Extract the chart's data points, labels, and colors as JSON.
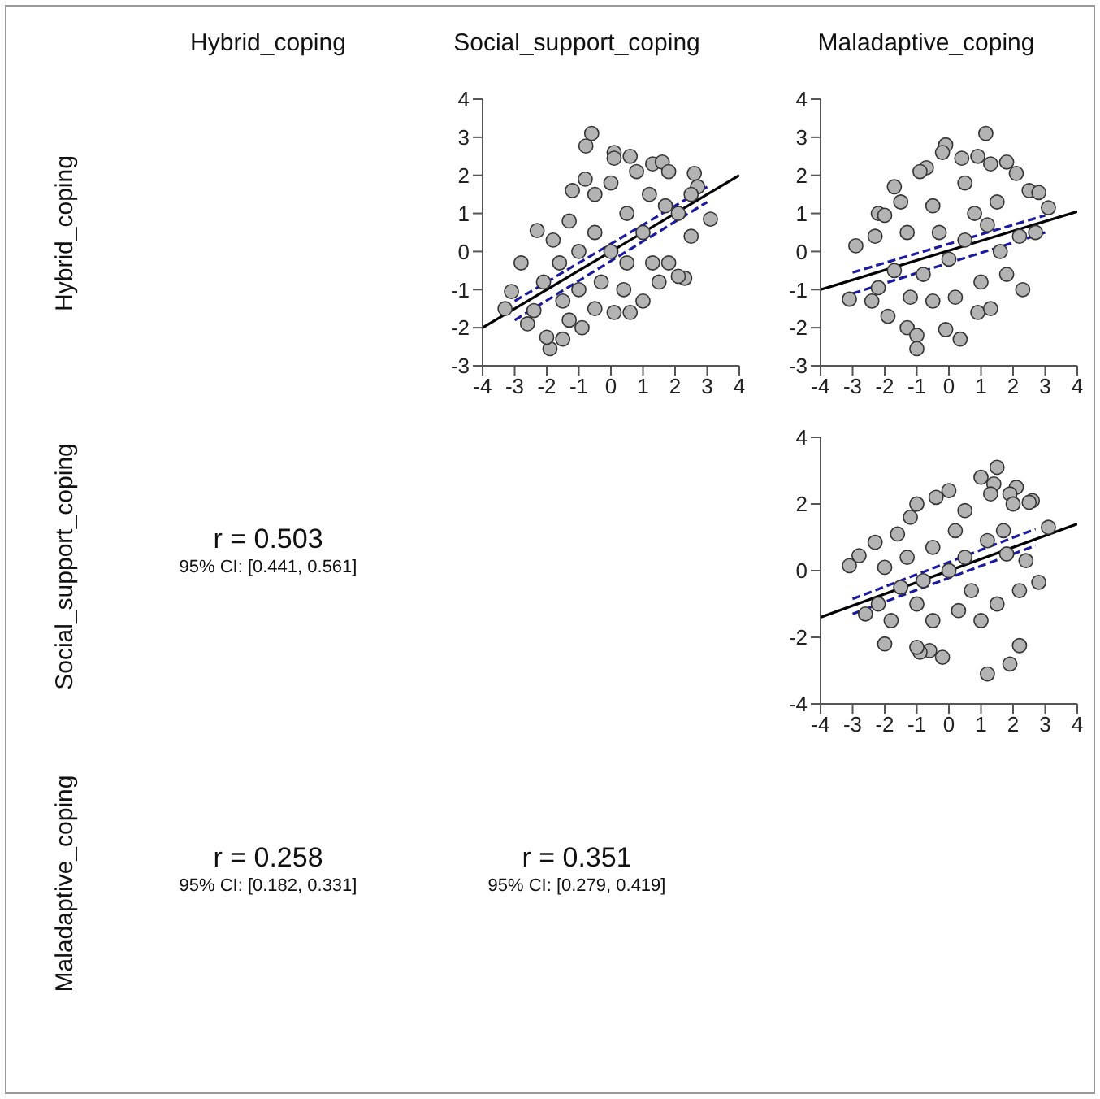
{
  "chart_data": [
    {
      "type": "other",
      "annotations": [
        "Hybrid_coping",
        "Social_support_coping",
        "Maladaptive_coping",
        "Hybrid_coping",
        "Social_support_coping",
        "Maladaptive_coping"
      ]
    },
    {
      "type": "scatter",
      "xlim": [
        -4,
        4
      ],
      "xticks": [
        -4,
        -3,
        -2,
        -1,
        0,
        1,
        2,
        3,
        4
      ],
      "ylim": [
        -3,
        4
      ],
      "yticks": [
        -3,
        -2,
        -1,
        0,
        1,
        2,
        3,
        4
      ],
      "grid": false,
      "legend": false,
      "series": [
        {
          "color": "#b3b3b3",
          "marker": "circle",
          "x": [
            -0.6,
            -0.78,
            0.1,
            0.1,
            0.6,
            1.3,
            1.6,
            1.8,
            2.6,
            2.7,
            3.1,
            2.5,
            2.3,
            2.1,
            -2.3,
            -2.8,
            -3.1,
            -3.3,
            -2.4,
            -2.6,
            -1.9,
            -2.0,
            -1.5,
            -0.9,
            -1.5,
            -1.0,
            -0.5,
            0.1,
            0.6,
            1.0,
            1.5,
            1.8,
            -0.8,
            -0.5,
            -1.2,
            0,
            0.8,
            1.2,
            1.7,
            2.1,
            -1.3,
            -1.8,
            -1.6,
            -2.1,
            -1.0,
            -0.5,
            0,
            0.5,
            1,
            0.5,
            -0.3,
            1.3,
            2.5,
            -1.3,
            0.4
          ],
          "values": [
            3.1,
            2.77,
            2.6,
            2.45,
            2.5,
            2.3,
            2.35,
            2.1,
            2.05,
            1.7,
            0.85,
            0.4,
            -0.7,
            -0.65,
            0.55,
            -0.3,
            -1.05,
            -1.5,
            -1.55,
            -1.9,
            -2.55,
            -2.25,
            -2.3,
            -2.0,
            -1.3,
            -1.0,
            -1.5,
            -1.6,
            -1.6,
            -1.3,
            -0.8,
            -0.3,
            1.9,
            1.5,
            1.6,
            1.8,
            2.1,
            1.5,
            1.2,
            1.0,
            0.8,
            0.3,
            -0.3,
            -0.8,
            0,
            0.5,
            0,
            -0.3,
            0.5,
            1.0,
            -0.8,
            -0.3,
            1.5,
            -1.8,
            -1.0
          ]
        },
        {
          "type": "line",
          "color": "#000000",
          "x": [
            -4,
            4
          ],
          "values": [
            -2,
            2
          ]
        },
        {
          "type": "line",
          "color": "#1a1aa0",
          "line_style": "dashed",
          "x": [
            -3,
            3
          ],
          "values": [
            -1.3,
            1.7
          ]
        },
        {
          "type": "line",
          "color": "#1a1aa0",
          "line_style": "dashed",
          "x": [
            -3,
            3
          ],
          "values": [
            -1.8,
            1.3
          ]
        }
      ]
    },
    {
      "type": "scatter",
      "xlim": [
        -4,
        4
      ],
      "xticks": [
        -4,
        -3,
        -2,
        -1,
        0,
        1,
        2,
        3,
        4
      ],
      "ylim": [
        -3,
        4
      ],
      "yticks": [
        -3,
        -2,
        -1,
        0,
        1,
        2,
        3,
        4
      ],
      "grid": false,
      "legend": false,
      "series": [
        {
          "color": "#b3b3b3",
          "marker": "circle",
          "x": [
            1.15,
            -0.1,
            -0.2,
            0.4,
            0.9,
            1.3,
            1.8,
            2.1,
            -0.7,
            -0.9,
            2.5,
            2.8,
            3.1,
            -1.7,
            -2.2,
            -2.0,
            -2.9,
            -3.1,
            -2.4,
            -2.2,
            -1.9,
            -1.3,
            -1.0,
            -1.0,
            -0.1,
            0.35,
            0.9,
            1.3,
            2.3,
            1.8,
            2.2,
            2.7,
            1.5,
            0.5,
            -0.5,
            -1.3,
            -2.3,
            -1.7,
            -0.8,
            0,
            0.5,
            1,
            -0.5,
            0.2,
            1.2,
            -1.2,
            0.8,
            -0.3,
            1.6,
            -1.5
          ],
          "values": [
            3.1,
            2.8,
            2.6,
            2.45,
            2.5,
            2.3,
            2.35,
            2.05,
            2.2,
            2.1,
            1.6,
            1.55,
            1.15,
            1.7,
            1.0,
            0.95,
            0.15,
            -1.25,
            -1.3,
            -0.95,
            -1.7,
            -2.0,
            -2.2,
            -2.55,
            -2.05,
            -2.3,
            -1.6,
            -1.5,
            -1.0,
            -0.6,
            0.4,
            0.5,
            1.3,
            1.8,
            1.2,
            0.5,
            0.4,
            -0.5,
            -0.6,
            -0.2,
            0.3,
            -0.8,
            -1.3,
            -1.2,
            0.7,
            -1.2,
            1.0,
            0.5,
            0.0,
            1.3
          ]
        },
        {
          "type": "line",
          "color": "#000000",
          "x": [
            -4,
            4
          ],
          "values": [
            -1,
            1.05
          ]
        },
        {
          "type": "line",
          "color": "#1a1aa0",
          "line_style": "dashed",
          "x": [
            -3,
            3
          ],
          "values": [
            -0.55,
            0.95
          ]
        },
        {
          "type": "line",
          "color": "#1a1aa0",
          "line_style": "dashed",
          "x": [
            -3,
            3
          ],
          "values": [
            -1.1,
            0.5
          ]
        }
      ]
    },
    {
      "type": "scatter",
      "xlim": [
        -4,
        4
      ],
      "xticks": [
        -4,
        -3,
        -2,
        -1,
        0,
        1,
        2,
        3,
        4
      ],
      "ylim": [
        -4,
        4
      ],
      "yticks": [
        -4,
        -2,
        0,
        2,
        4
      ],
      "grid": false,
      "legend": false,
      "series": [
        {
          "color": "#b3b3b3",
          "marker": "circle",
          "x": [
            1.5,
            1.4,
            1.0,
            1.3,
            2.1,
            1.9,
            2.0,
            2.6,
            2.5,
            3.1,
            2.8,
            2.2,
            2.2,
            1.9,
            1.2,
            -0.2,
            -0.6,
            -0.9,
            -1.0,
            -2.0,
            -3.1,
            -2.8,
            -2.3,
            -2.0,
            -2.6,
            -1.0,
            0,
            -0.4,
            -1.2,
            -1.6,
            0.5,
            1.7,
            -1.5,
            -1.0,
            -0.5,
            0.3,
            1.0,
            1.5,
            1.8,
            0.5,
            0,
            -0.5,
            -1.8,
            -2.2,
            0.7,
            1.2,
            -0.8,
            2.4,
            0.2,
            -1.3
          ],
          "values": [
            3.1,
            2.6,
            2.8,
            2.3,
            2.5,
            2.3,
            2.0,
            2.1,
            2.05,
            1.3,
            -0.35,
            -0.6,
            -2.25,
            -2.8,
            -3.1,
            -2.6,
            -2.4,
            -2.45,
            -2.3,
            -2.2,
            0.15,
            0.45,
            0.85,
            0.1,
            -1.3,
            2.0,
            2.4,
            2.2,
            1.6,
            1.1,
            1.8,
            1.2,
            -0.5,
            -1.0,
            -1.5,
            -1.2,
            -1.5,
            -1.0,
            0.5,
            0.4,
            0,
            0.7,
            -1.5,
            -1.0,
            -0.6,
            0.9,
            -0.3,
            0.3,
            1.2,
            0.4
          ]
        },
        {
          "type": "line",
          "color": "#000000",
          "x": [
            -4,
            4
          ],
          "values": [
            -1.4,
            1.4
          ]
        },
        {
          "type": "line",
          "color": "#1a1aa0",
          "line_style": "dashed",
          "x": [
            -3,
            2.7
          ],
          "values": [
            -0.85,
            1.25
          ]
        },
        {
          "type": "line",
          "color": "#1a1aa0",
          "line_style": "dashed",
          "x": [
            -3,
            2.7
          ],
          "values": [
            -1.3,
            0.75
          ]
        }
      ]
    },
    {
      "type": "other",
      "annotations": [
        "r = 0.503",
        "95% CI: [0.441, 0.561]"
      ]
    },
    {
      "type": "other",
      "annotations": [
        "r = 0.258",
        "95% CI: [0.182, 0.331]"
      ]
    },
    {
      "type": "other",
      "annotations": [
        "r = 0.351",
        "95% CI: [0.279, 0.419]"
      ]
    }
  ]
}
